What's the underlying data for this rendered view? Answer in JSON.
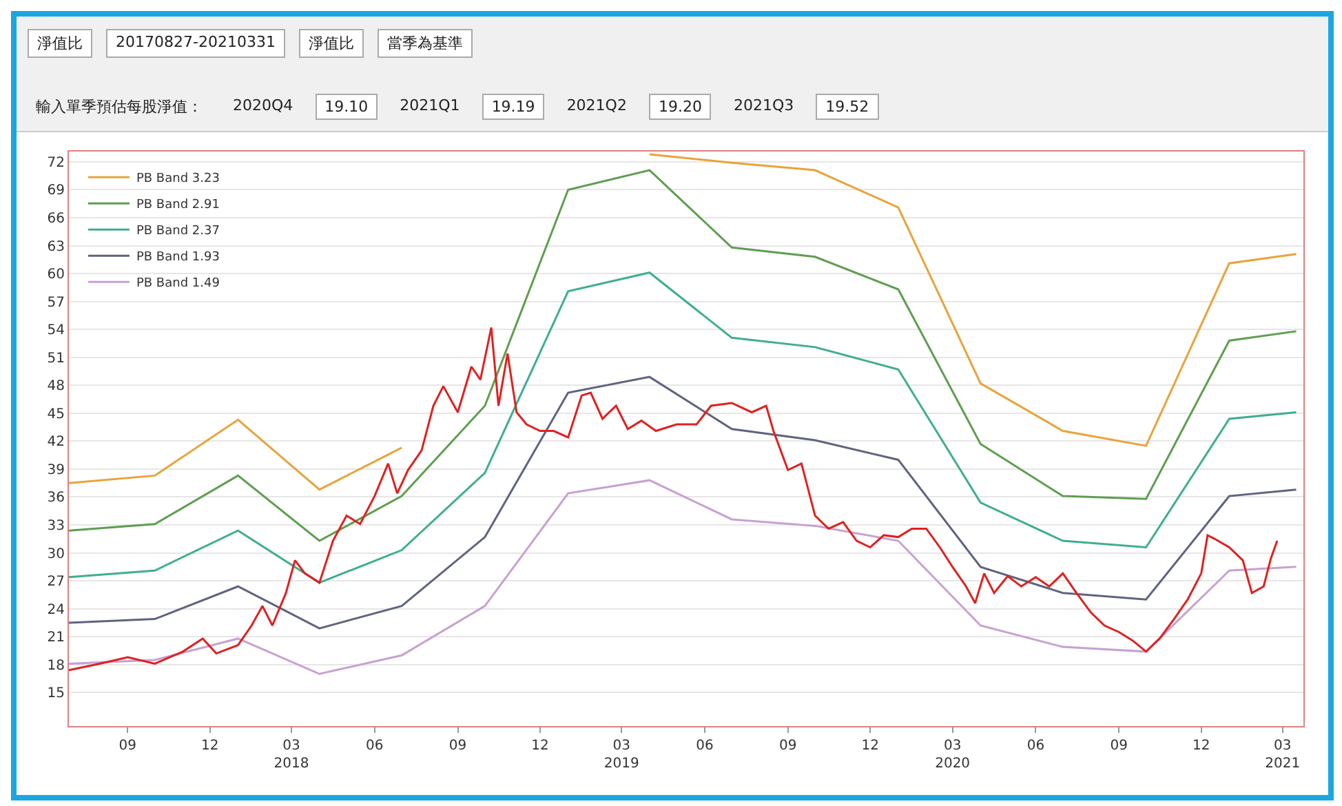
{
  "chart_data": {
    "type": "line",
    "annotations": [
      "淨值比",
      "20170827-20210331",
      "淨值比",
      "當季為基準",
      "輸入單季預估每股淨值：",
      "2020Q4",
      "19.10",
      "2021Q1",
      "19.19",
      "2021Q2",
      "19.20",
      "2021Q3",
      "19.52"
    ],
    "xlim": [
      "2017-06-28",
      "2021-03-24"
    ],
    "xticks": [
      {
        "value": "2017-09-01",
        "label": "09"
      },
      {
        "value": "2017-12-01",
        "label": "12"
      },
      {
        "value": "2018-03-01",
        "label": "03\n2018"
      },
      {
        "value": "2018-06-01",
        "label": "06"
      },
      {
        "value": "2018-09-01",
        "label": "09"
      },
      {
        "value": "2018-12-01",
        "label": "12"
      },
      {
        "value": "2019-03-01",
        "label": "03\n2019"
      },
      {
        "value": "2019-06-01",
        "label": "06"
      },
      {
        "value": "2019-09-01",
        "label": "09"
      },
      {
        "value": "2019-12-01",
        "label": "12"
      },
      {
        "value": "2020-03-01",
        "label": "03\n2020"
      },
      {
        "value": "2020-06-01",
        "label": "06"
      },
      {
        "value": "2020-09-01",
        "label": "09"
      },
      {
        "value": "2020-12-01",
        "label": "12"
      },
      {
        "value": "2021-03-01",
        "label": "03\n2021"
      }
    ],
    "ylim": [
      11.4,
      73.1
    ],
    "yticks": [
      15,
      18,
      21,
      24,
      27,
      30,
      33,
      36,
      39,
      42,
      45,
      48,
      51,
      54,
      57,
      60,
      63,
      66,
      69,
      72
    ],
    "grid": "y",
    "legend": "top left",
    "marker": "none",
    "line_style": "solid",
    "series": [
      {
        "name": "PB Band 3.23",
        "color": "#e8a33a",
        "x": [
          "2017-06-28",
          "2017-10-01",
          "2018-01-01",
          "2018-04-01",
          "2018-07-01",
          "2018-10-01",
          "2019-01-01",
          "2019-04-01",
          "2019-07-01",
          "2019-10-01",
          "2020-01-01",
          "2020-04-01",
          "2020-07-01",
          "2020-10-01",
          "2021-01-01",
          "2021-03-16"
        ],
        "values": [
          37.5,
          38.3,
          44.3,
          36.8,
          41.3,
          null,
          null,
          72.8,
          71.9,
          71.1,
          67.1,
          48.2,
          43.1,
          41.5,
          61.1,
          62.1
        ]
      },
      {
        "name": "PB Band 2.91",
        "color": "#5e9e50",
        "x": [
          "2017-06-28",
          "2017-10-01",
          "2018-01-01",
          "2018-04-01",
          "2018-07-01",
          "2018-10-01",
          "2019-01-01",
          "2019-04-01",
          "2019-07-01",
          "2019-10-01",
          "2020-01-01",
          "2020-04-01",
          "2020-07-01",
          "2020-10-01",
          "2021-01-01",
          "2021-03-16"
        ],
        "values": [
          32.4,
          33.1,
          38.3,
          31.3,
          36.1,
          45.8,
          69.0,
          71.1,
          62.8,
          61.8,
          58.3,
          41.7,
          36.1,
          35.8,
          52.8,
          53.8
        ]
      },
      {
        "name": "PB Band 2.37",
        "color": "#3fae90",
        "x": [
          "2017-06-28",
          "2017-10-01",
          "2018-01-01",
          "2018-04-01",
          "2018-07-01",
          "2018-10-01",
          "2019-01-01",
          "2019-04-01",
          "2019-07-01",
          "2019-10-01",
          "2020-01-01",
          "2020-04-01",
          "2020-07-01",
          "2020-10-01",
          "2021-01-01",
          "2021-03-16"
        ],
        "values": [
          27.4,
          28.1,
          32.4,
          26.8,
          30.3,
          38.6,
          58.1,
          60.1,
          53.1,
          52.1,
          49.7,
          35.4,
          31.3,
          30.6,
          44.4,
          45.1
        ]
      },
      {
        "name": "PB Band 1.93",
        "color": "#5f6380",
        "x": [
          "2017-06-28",
          "2017-10-01",
          "2018-01-01",
          "2018-04-01",
          "2018-07-01",
          "2018-10-01",
          "2019-01-01",
          "2019-04-01",
          "2019-07-01",
          "2019-10-01",
          "2020-01-01",
          "2020-04-01",
          "2020-07-01",
          "2020-10-01",
          "2021-01-01",
          "2021-03-16"
        ],
        "values": [
          22.5,
          22.9,
          26.4,
          21.9,
          24.3,
          31.7,
          47.2,
          48.9,
          43.3,
          42.1,
          40.0,
          28.5,
          25.7,
          25.0,
          36.1,
          36.8
        ]
      },
      {
        "name": "PB Band 1.49",
        "color": "#c8a0d2",
        "x": [
          "2017-06-28",
          "2017-10-01",
          "2018-01-01",
          "2018-04-01",
          "2018-07-01",
          "2018-10-01",
          "2019-01-01",
          "2019-04-01",
          "2019-07-01",
          "2019-10-01",
          "2020-01-01",
          "2020-04-01",
          "2020-07-01",
          "2020-10-01",
          "2021-01-01",
          "2021-03-16"
        ],
        "values": [
          18.1,
          18.5,
          20.8,
          17.0,
          19.0,
          24.3,
          36.4,
          37.8,
          33.6,
          32.9,
          31.3,
          22.2,
          19.9,
          19.4,
          28.1,
          28.5
        ]
      },
      {
        "color": "#e02020",
        "x": [
          "2017-06-28",
          "2017-08-01",
          "2017-09-01",
          "2017-10-01",
          "2017-11-01",
          "2017-11-23",
          "2017-12-08",
          "2018-01-01",
          "2018-01-16",
          "2018-01-28",
          "2018-02-08",
          "2018-02-23",
          "2018-03-05",
          "2018-03-16",
          "2018-04-01",
          "2018-04-16",
          "2018-05-01",
          "2018-05-16",
          "2018-06-01",
          "2018-06-16",
          "2018-06-26",
          "2018-07-08",
          "2018-07-23",
          "2018-08-05",
          "2018-08-16",
          "2018-09-01",
          "2018-09-16",
          "2018-09-26",
          "2018-10-08",
          "2018-10-16",
          "2018-10-26",
          "2018-11-05",
          "2018-11-16",
          "2018-12-01",
          "2018-12-16",
          "2019-01-01",
          "2019-01-16",
          "2019-01-26",
          "2019-02-08",
          "2019-02-23",
          "2019-03-08",
          "2019-03-23",
          "2019-04-08",
          "2019-05-01",
          "2019-05-23",
          "2019-06-08",
          "2019-07-01",
          "2019-07-23",
          "2019-08-08",
          "2019-08-16",
          "2019-09-01",
          "2019-09-16",
          "2019-10-01",
          "2019-10-16",
          "2019-11-01",
          "2019-11-16",
          "2019-12-01",
          "2019-12-16",
          "2020-01-01",
          "2020-01-16",
          "2020-02-01",
          "2020-02-16",
          "2020-03-01",
          "2020-03-16",
          "2020-03-26",
          "2020-04-05",
          "2020-04-16",
          "2020-05-01",
          "2020-05-16",
          "2020-06-01",
          "2020-06-16",
          "2020-07-01",
          "2020-07-16",
          "2020-08-01",
          "2020-08-16",
          "2020-09-01",
          "2020-09-16",
          "2020-10-01",
          "2020-10-16",
          "2020-11-01",
          "2020-11-16",
          "2020-12-01",
          "2020-12-08",
          "2020-12-16",
          "2021-01-01",
          "2021-01-16",
          "2021-01-26",
          "2021-02-08",
          "2021-02-16",
          "2021-02-23"
        ],
        "values": [
          17.4,
          18.1,
          18.8,
          18.1,
          19.4,
          20.8,
          19.2,
          20.1,
          22.2,
          24.3,
          22.2,
          25.7,
          29.2,
          27.8,
          26.8,
          31.3,
          34.0,
          33.1,
          36.1,
          39.6,
          36.4,
          38.9,
          41.0,
          45.8,
          47.9,
          45.1,
          50.0,
          48.6,
          54.2,
          45.8,
          51.4,
          45.1,
          43.8,
          43.1,
          43.1,
          42.4,
          46.9,
          47.2,
          44.4,
          45.8,
          43.3,
          44.2,
          43.1,
          43.8,
          43.8,
          45.8,
          46.1,
          45.1,
          45.8,
          43.1,
          38.9,
          39.6,
          34.0,
          32.6,
          33.3,
          31.3,
          30.6,
          31.9,
          31.7,
          32.6,
          32.6,
          30.6,
          28.5,
          26.4,
          24.6,
          27.8,
          25.7,
          27.5,
          26.4,
          27.4,
          26.4,
          27.8,
          25.7,
          23.6,
          22.2,
          21.5,
          20.6,
          19.4,
          20.8,
          22.9,
          25.0,
          27.8,
          31.9,
          31.5,
          30.6,
          29.2,
          25.7,
          26.4,
          29.4,
          31.3
        ]
      }
    ]
  }
}
